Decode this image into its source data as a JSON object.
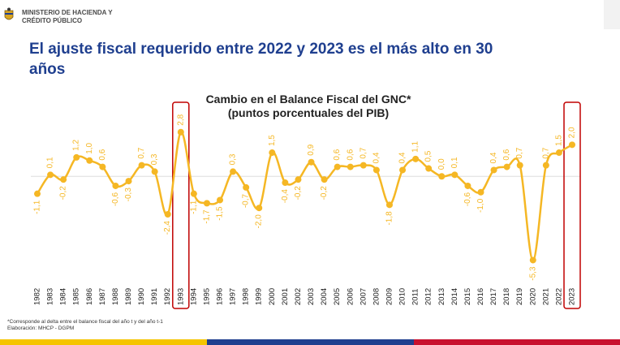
{
  "header": {
    "ministry_line1": "MINISTERIO DE HACIENDA Y",
    "ministry_line2": "CRÉDITO PÚBLICO"
  },
  "title": {
    "line1": "El ajuste fiscal requerido entre 2022 y 2023 es el más alto en 30",
    "line2": "años"
  },
  "colors": {
    "title": "#1f3f8f",
    "series": "#f5b724",
    "highlight": "#c00000",
    "stripe_yellow": "#f5c400",
    "stripe_blue": "#1f3f8f",
    "stripe_red": "#c8102e"
  },
  "chart_data": {
    "type": "line",
    "title": "Cambio en el Balance Fiscal del GNC*",
    "subtitle": "(puntos porcentuales del PIB)",
    "x": [
      "1982",
      "1983",
      "1984",
      "1985",
      "1986",
      "1987",
      "1988",
      "1989",
      "1990",
      "1991",
      "1992",
      "1993",
      "1994",
      "1995",
      "1996",
      "1997",
      "1998",
      "1999",
      "2000",
      "2001",
      "2002",
      "2003",
      "2004",
      "2005",
      "2006",
      "2007",
      "2008",
      "2009",
      "2010",
      "2011",
      "2012",
      "2013",
      "2014",
      "2015",
      "2016",
      "2017",
      "2018",
      "2019",
      "2020",
      "2021",
      "2022",
      "2023"
    ],
    "values": [
      -1.1,
      0.1,
      -0.2,
      1.2,
      1.0,
      0.6,
      -0.6,
      -0.3,
      0.7,
      0.3,
      -2.4,
      2.8,
      -1.1,
      -1.7,
      -1.5,
      0.3,
      -0.7,
      -2.0,
      1.5,
      -0.4,
      -0.2,
      0.9,
      -0.2,
      0.6,
      0.6,
      0.7,
      0.4,
      -1.8,
      0.4,
      1.1,
      0.5,
      0.0,
      0.1,
      -0.6,
      -1.0,
      0.4,
      0.6,
      0.7,
      -5.3,
      0.7,
      1.5,
      2.0
    ],
    "value_labels": [
      "-1,1",
      "0,1",
      "-0,2",
      "1,2",
      "1,0",
      "0,6",
      "-0,6",
      "-0,3",
      "0,7",
      "0,3",
      "-2,4",
      "2,8",
      "-1,1",
      "-1,7",
      "-1,5",
      "0,3",
      "-0,7",
      "-2,0",
      "1,5",
      "-0,4",
      "-0,2",
      "0,9",
      "-0,2",
      "0,6",
      "0,6",
      "0,7",
      "0,4",
      "-1,8",
      "0,4",
      "1,1",
      "0,5",
      "0,0",
      "0,1",
      "-0,6",
      "-1,0",
      "0,4",
      "0,6",
      "0,7",
      "-5,3",
      "0,7",
      "1,5",
      "2,0"
    ],
    "highlighted": [
      "1993",
      "2023"
    ],
    "ylim": [
      -6.2,
      3.3
    ],
    "grid": false,
    "legend": "none"
  },
  "footnote": {
    "line1": "*Corresponde al delta entre el balance fiscal del año t y del año t-1",
    "line2": "Elaboración: MHCP - DGPM"
  }
}
